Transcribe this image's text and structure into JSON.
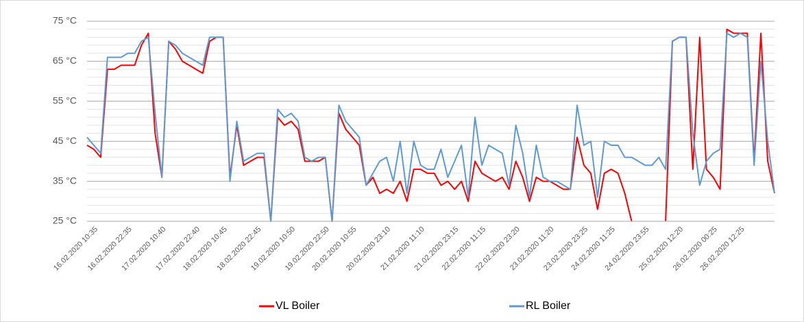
{
  "chart_data": {
    "type": "line",
    "categories": [
      null,
      "16.02.2020 10:35",
      null,
      null,
      null,
      null,
      "16.02.2020 22:35",
      null,
      null,
      null,
      null,
      "17.02.2020 10:40",
      null,
      null,
      null,
      null,
      "17.02.2020 22:40",
      null,
      null,
      null,
      "18.02.2020 10:45",
      null,
      null,
      null,
      null,
      "18.02.2020 22:45",
      null,
      null,
      null,
      null,
      "19.02.2020 10:50",
      null,
      null,
      null,
      null,
      "19.02.2020 22:50",
      null,
      null,
      null,
      "20.02.2020 10:55",
      null,
      null,
      null,
      null,
      "20.02.2020 23:10",
      null,
      null,
      null,
      null,
      "21.02.2020 11:10",
      null,
      null,
      null,
      null,
      "21.02.2020 23:15",
      null,
      null,
      null,
      "22.02.2020 11:15",
      null,
      null,
      null,
      null,
      "22.02.2020 23:20",
      null,
      null,
      null,
      null,
      "23.02.2020 11:20",
      null,
      null,
      null,
      null,
      "23.02.2020 23:25",
      null,
      null,
      null,
      "24.02.2020 11:25",
      null,
      null,
      null,
      null,
      "24.02.2020 23:55",
      null,
      null,
      null,
      null,
      "25.02.2020 12:20",
      null,
      null,
      null,
      null,
      "26.02.2020 00:25",
      null,
      null,
      null,
      "26.02.2020 12:25",
      null,
      null,
      null,
      null,
      null
    ],
    "series": [
      {
        "name": "VL Boiler",
        "color": "#ff0000",
        "values": [
          44,
          43,
          41,
          63,
          63,
          64,
          64,
          64,
          69,
          72,
          47,
          36,
          70,
          68,
          65,
          64,
          63,
          62,
          70,
          71,
          71,
          36,
          49,
          39,
          40,
          41,
          41,
          25,
          51,
          49,
          50,
          48,
          40,
          40,
          40,
          41,
          25,
          52,
          48,
          46,
          44,
          34,
          36,
          32,
          33,
          32,
          35,
          30,
          38,
          38,
          37,
          37,
          34,
          35,
          33,
          35,
          30,
          40,
          37,
          36,
          35,
          36,
          33,
          40,
          36,
          30,
          36,
          35,
          35,
          34,
          33,
          33,
          46,
          39,
          37,
          28,
          37,
          38,
          37,
          32,
          25,
          null,
          null,
          null,
          null,
          25,
          70,
          71,
          71,
          38,
          71,
          38,
          36,
          33,
          73,
          72,
          72,
          72,
          40,
          72,
          40,
          32
        ]
      },
      {
        "name": "RL Boiler",
        "color": "#5b9bd5",
        "values": [
          46,
          44,
          42,
          66,
          66,
          66,
          67,
          67,
          70,
          71,
          52,
          36,
          70,
          69,
          67,
          66,
          65,
          64,
          71,
          71,
          71,
          35,
          50,
          40,
          41,
          42,
          42,
          25,
          53,
          51,
          52,
          50,
          41,
          40,
          41,
          41,
          25,
          54,
          50,
          48,
          46,
          34,
          37,
          40,
          41,
          35,
          45,
          32,
          45,
          39,
          38,
          38,
          43,
          36,
          40,
          44,
          31,
          51,
          39,
          44,
          43,
          42,
          34,
          49,
          42,
          31,
          44,
          36,
          35,
          35,
          34,
          33,
          54,
          44,
          45,
          31,
          45,
          44,
          44,
          41,
          41,
          40,
          39,
          39,
          41,
          38,
          70,
          71,
          71,
          47,
          34,
          40,
          42,
          43,
          72,
          71,
          72,
          71,
          39,
          65,
          45,
          32
        ]
      }
    ],
    "ylim": [
      25,
      75
    ],
    "yticks": [
      {
        "value": 25,
        "label": "25 °C"
      },
      {
        "value": 35,
        "label": "35 °C"
      },
      {
        "value": 45,
        "label": "45 °C"
      },
      {
        "value": 55,
        "label": "55 °C"
      },
      {
        "value": 65,
        "label": "65 °C"
      },
      {
        "value": 75,
        "label": "75 °C"
      }
    ],
    "minor_yticks": [
      27,
      29,
      31,
      33,
      37,
      39,
      41,
      43,
      47,
      49,
      51,
      53,
      57,
      59,
      61,
      63,
      67,
      69,
      71,
      73
    ],
    "grid": true,
    "legend": "bottom"
  }
}
